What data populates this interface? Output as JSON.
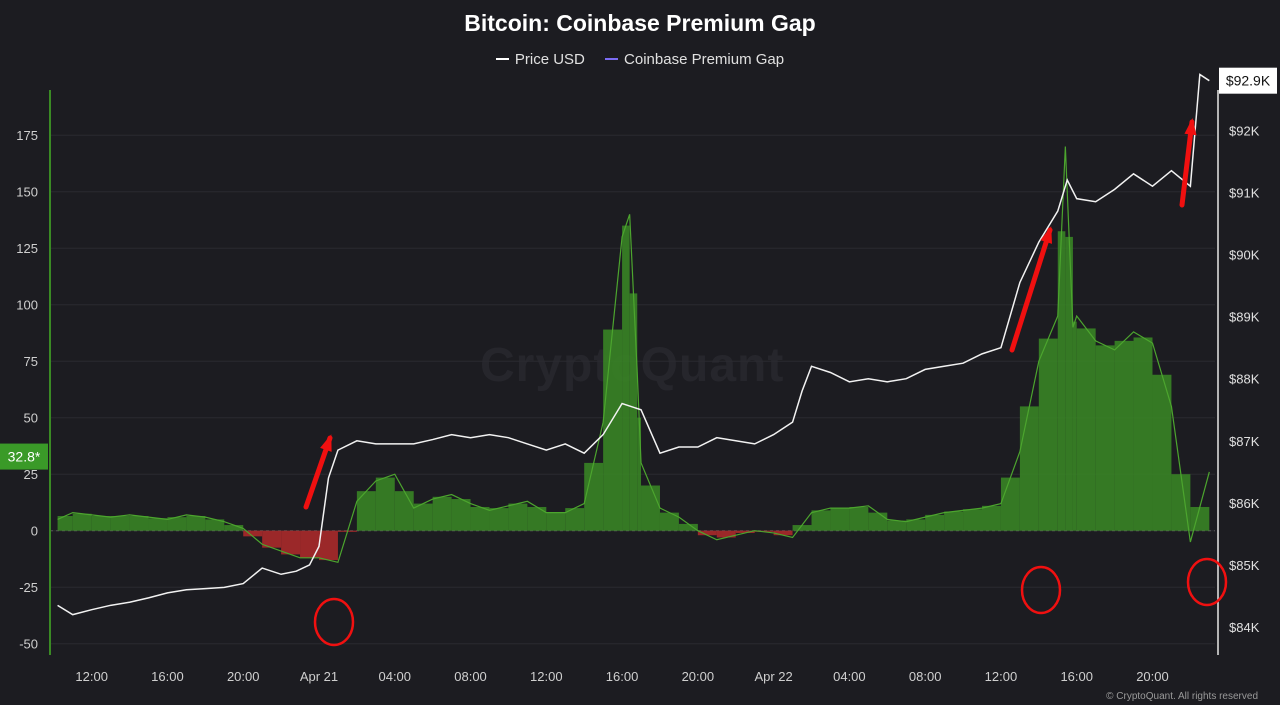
{
  "watermark": "CryptoQuant",
  "copyright": "© CryptoQuant. All rights reserved",
  "chart_data": {
    "type": "line",
    "title": "Bitcoin: Coinbase Premium Gap",
    "legend": [
      {
        "name": "Price USD",
        "color": "#ffffff"
      },
      {
        "name": "Coinbase Premium Gap",
        "color": "#7b6cf2"
      }
    ],
    "legend_position": "top-center",
    "x_tick_labels": [
      "12:00",
      "16:00",
      "20:00",
      "Apr 21",
      "04:00",
      "08:00",
      "12:00",
      "16:00",
      "20:00",
      "Apr 22",
      "04:00",
      "08:00",
      "12:00",
      "16:00",
      "20:00"
    ],
    "x_tick_hours": [
      12,
      16,
      20,
      24,
      28,
      32,
      36,
      40,
      44,
      48,
      52,
      56,
      60,
      64,
      68
    ],
    "x_range_hours": [
      9.8,
      71.3
    ],
    "y_left": {
      "ticks": [
        -50,
        -25,
        0,
        25,
        50,
        75,
        100,
        125,
        150,
        175
      ],
      "range": [
        -55,
        195
      ],
      "current_label": "32.8*",
      "current_value": 32.8,
      "color_positive": "#3a8a24",
      "color_negative": "#b22a2a"
    },
    "y_right": {
      "ticks": [
        "$84K",
        "$85K",
        "$86K",
        "$87K",
        "$88K",
        "$89K",
        "$90K",
        "$91K",
        "$92K"
      ],
      "tick_values": [
        84000,
        85000,
        86000,
        87000,
        88000,
        89000,
        90000,
        91000,
        92000
      ],
      "range": [
        83550,
        92650
      ],
      "current_label": "$92.9K"
    },
    "grid": true,
    "series": [
      {
        "name": "Price USD",
        "axis": "right",
        "points": [
          [
            10.2,
            84350
          ],
          [
            11,
            84200
          ],
          [
            12,
            84280
          ],
          [
            13,
            84350
          ],
          [
            14,
            84400
          ],
          [
            15,
            84470
          ],
          [
            16,
            84550
          ],
          [
            17,
            84600
          ],
          [
            18,
            84620
          ],
          [
            19,
            84640
          ],
          [
            20,
            84700
          ],
          [
            21,
            84950
          ],
          [
            22,
            84850
          ],
          [
            22.8,
            84900
          ],
          [
            23.5,
            85000
          ],
          [
            24,
            85300
          ],
          [
            24.5,
            86400
          ],
          [
            25,
            86850
          ],
          [
            26,
            87000
          ],
          [
            27,
            86950
          ],
          [
            28,
            86950
          ],
          [
            29,
            86950
          ],
          [
            30,
            87020
          ],
          [
            31,
            87100
          ],
          [
            32,
            87050
          ],
          [
            33,
            87100
          ],
          [
            34,
            87050
          ],
          [
            35,
            86950
          ],
          [
            36,
            86850
          ],
          [
            37,
            86950
          ],
          [
            38,
            86800
          ],
          [
            39,
            87100
          ],
          [
            40,
            87600
          ],
          [
            41,
            87500
          ],
          [
            42,
            86800
          ],
          [
            43,
            86900
          ],
          [
            44,
            86900
          ],
          [
            45,
            87050
          ],
          [
            46,
            87000
          ],
          [
            47,
            86950
          ],
          [
            48,
            87100
          ],
          [
            49,
            87300
          ],
          [
            49.5,
            87800
          ],
          [
            50,
            88200
          ],
          [
            51,
            88100
          ],
          [
            52,
            87950
          ],
          [
            53,
            88000
          ],
          [
            54,
            87950
          ],
          [
            55,
            88000
          ],
          [
            56,
            88150
          ],
          [
            57,
            88200
          ],
          [
            58,
            88250
          ],
          [
            59,
            88400
          ],
          [
            60,
            88500
          ],
          [
            61,
            89550
          ],
          [
            62,
            90200
          ],
          [
            63,
            90700
          ],
          [
            63.5,
            91200
          ],
          [
            64,
            90900
          ],
          [
            65,
            90850
          ],
          [
            66,
            91050
          ],
          [
            67,
            91300
          ],
          [
            68,
            91100
          ],
          [
            69,
            91350
          ],
          [
            70,
            91100
          ],
          [
            70.5,
            92900
          ],
          [
            71,
            92800
          ]
        ]
      },
      {
        "name": "Coinbase Premium Gap",
        "axis": "left",
        "points": [
          [
            10.2,
            5
          ],
          [
            11,
            8
          ],
          [
            12,
            7
          ],
          [
            13,
            6
          ],
          [
            14,
            7
          ],
          [
            15,
            6
          ],
          [
            16,
            5
          ],
          [
            17,
            7
          ],
          [
            18,
            6
          ],
          [
            19,
            4
          ],
          [
            20,
            1
          ],
          [
            21,
            -6
          ],
          [
            22,
            -9
          ],
          [
            23,
            -12
          ],
          [
            24,
            -12
          ],
          [
            25,
            -14
          ],
          [
            26,
            13
          ],
          [
            27,
            22
          ],
          [
            28,
            25
          ],
          [
            29,
            10
          ],
          [
            30,
            14
          ],
          [
            31,
            16
          ],
          [
            32,
            12
          ],
          [
            33,
            9
          ],
          [
            34,
            11
          ],
          [
            35,
            13
          ],
          [
            36,
            8
          ],
          [
            37,
            8
          ],
          [
            38,
            12
          ],
          [
            39,
            48
          ],
          [
            40,
            130
          ],
          [
            40.4,
            140
          ],
          [
            40.8,
            70
          ],
          [
            41,
            30
          ],
          [
            42,
            10
          ],
          [
            43,
            6
          ],
          [
            44,
            0
          ],
          [
            45,
            -4
          ],
          [
            46,
            -2
          ],
          [
            47,
            0
          ],
          [
            48,
            -1
          ],
          [
            49,
            -3
          ],
          [
            50,
            8
          ],
          [
            51,
            10
          ],
          [
            52,
            10
          ],
          [
            53,
            11
          ],
          [
            54,
            5
          ],
          [
            55,
            4
          ],
          [
            56,
            6
          ],
          [
            57,
            8
          ],
          [
            58,
            9
          ],
          [
            59,
            10
          ],
          [
            60,
            12
          ],
          [
            61,
            35
          ],
          [
            62,
            75
          ],
          [
            63,
            95
          ],
          [
            63.4,
            170
          ],
          [
            63.8,
            90
          ],
          [
            64,
            95
          ],
          [
            65,
            84
          ],
          [
            66,
            80
          ],
          [
            67,
            88
          ],
          [
            68,
            83
          ],
          [
            69,
            55
          ],
          [
            70,
            -5
          ],
          [
            71,
            26
          ]
        ]
      }
    ]
  }
}
